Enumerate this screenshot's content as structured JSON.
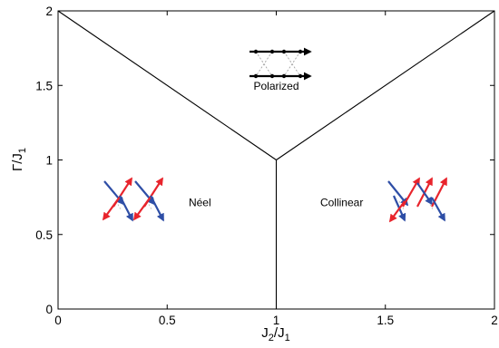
{
  "chart_data": {
    "type": "phase-diagram",
    "xlim": [
      0,
      2
    ],
    "ylim": [
      0,
      2
    ],
    "x_ticks": [
      {
        "value": 0,
        "label": "0"
      },
      {
        "value": 0.5,
        "label": "0.5"
      },
      {
        "value": 1,
        "label": "1"
      },
      {
        "value": 1.5,
        "label": "1.5"
      },
      {
        "value": 2,
        "label": "2"
      }
    ],
    "y_ticks": [
      {
        "value": 0,
        "label": "0"
      },
      {
        "value": 0.5,
        "label": "0.5"
      },
      {
        "value": 1,
        "label": "1"
      },
      {
        "value": 1.5,
        "label": "1.5"
      },
      {
        "value": 2,
        "label": "2"
      }
    ],
    "xlabel": {
      "main": "J",
      "sub1": "2",
      "mid": "/J",
      "sub2": "1"
    },
    "ylabel": {
      "main": "Γ/J",
      "sub": "1"
    },
    "boundaries": [
      {
        "name": "neel-polarized",
        "points": [
          [
            0,
            2
          ],
          [
            1,
            1
          ]
        ]
      },
      {
        "name": "collinear-polarized",
        "points": [
          [
            1,
            1
          ],
          [
            2,
            2
          ]
        ]
      },
      {
        "name": "neel-collinear",
        "points": [
          [
            1,
            0
          ],
          [
            1,
            1
          ]
        ]
      }
    ],
    "phases": [
      {
        "name": "Polarized",
        "label_at": [
          1,
          1.47
        ]
      },
      {
        "name": "Néel",
        "label_at": [
          0.65,
          0.69
        ]
      },
      {
        "name": "Collinear",
        "label_at": [
          1.3,
          0.69
        ]
      }
    ],
    "colors": {
      "axis": "#000000",
      "boundary": "#000000",
      "spin_up": "#e8242c",
      "spin_down": "#2e4ea6",
      "polarized_spin": "#000000"
    }
  }
}
